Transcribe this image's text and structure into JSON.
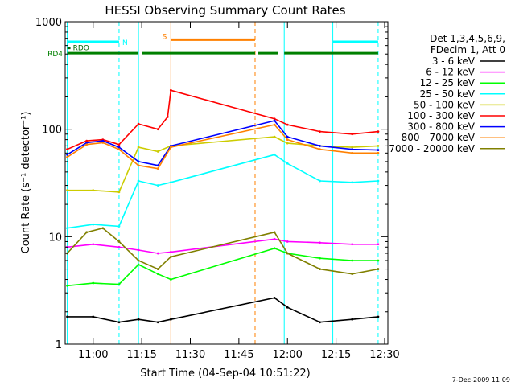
{
  "chart_data": {
    "type": "line",
    "title": "HESSI Observing Summary Count Rates",
    "xlabel": "Start Time (04-Sep-04 10:51:22)",
    "ylabel": "Count Rate (s⁻¹ detector⁻¹)",
    "y_scale": "log",
    "ylim": [
      1,
      1000
    ],
    "xlim": [
      "10:51:22",
      "12:31:00"
    ],
    "x_ticks": [
      "11:00",
      "11:15",
      "11:30",
      "11:45",
      "12:00",
      "12:15",
      "12:30"
    ],
    "y_ticks": [
      "1",
      "10",
      "100",
      "1000"
    ],
    "date_stamp": "7-Dec-2009 11:09",
    "legend_header": [
      "Det 1,3,4,5,6,9,",
      "FDecim 1, Att 0"
    ],
    "legend_position": "right",
    "series": [
      {
        "name": "3 - 6 keV",
        "color": "#000000",
        "x": [
          "10:52",
          "11:00",
          "11:08",
          "11:14",
          "11:20",
          "11:24",
          "11:56",
          "12:00",
          "12:10",
          "12:20",
          "12:28"
        ],
        "y": [
          1.8,
          1.8,
          1.6,
          1.7,
          1.6,
          1.7,
          2.7,
          2.2,
          1.6,
          1.7,
          1.8
        ]
      },
      {
        "name": "6 - 12 keV",
        "color": "#ff00ff",
        "x": [
          "10:52",
          "11:00",
          "11:08",
          "11:14",
          "11:20",
          "11:24",
          "11:56",
          "12:00",
          "12:10",
          "12:20",
          "12:28"
        ],
        "y": [
          8,
          8.5,
          8,
          7.5,
          7,
          7.2,
          9.5,
          9,
          8.8,
          8.5,
          8.5
        ]
      },
      {
        "name": "12 - 25 keV",
        "color": "#00ff00",
        "x": [
          "10:52",
          "11:00",
          "11:08",
          "11:14",
          "11:20",
          "11:24",
          "11:56",
          "12:00",
          "12:10",
          "12:20",
          "12:28"
        ],
        "y": [
          3.5,
          3.7,
          3.6,
          5.5,
          4.5,
          4,
          7.8,
          7,
          6.3,
          6,
          6
        ]
      },
      {
        "name": "25 - 50 keV",
        "color": "#00ffff",
        "x": [
          "10:52",
          "11:00",
          "11:08",
          "11:14",
          "11:20",
          "11:24",
          "11:56",
          "12:00",
          "12:10",
          "12:20",
          "12:28"
        ],
        "y": [
          12,
          13,
          12.5,
          33,
          30,
          32,
          58,
          48,
          33,
          32,
          33
        ]
      },
      {
        "name": "50 - 100 keV",
        "color": "#cccc00",
        "x": [
          "10:52",
          "11:00",
          "11:08",
          "11:14",
          "11:20",
          "11:24",
          "11:56",
          "12:00",
          "12:10",
          "12:20",
          "12:28"
        ],
        "y": [
          27,
          27,
          26,
          68,
          62,
          70,
          85,
          74,
          70,
          68,
          70
        ]
      },
      {
        "name": "100 - 300 keV",
        "color": "#ff0000",
        "x": [
          "10:52",
          "10:58",
          "11:03",
          "11:08",
          "11:14",
          "11:20",
          "11:23",
          "11:24",
          "11:56",
          "12:00",
          "12:10",
          "12:20",
          "12:28"
        ],
        "y": [
          65,
          78,
          80,
          72,
          112,
          100,
          130,
          230,
          125,
          110,
          95,
          90,
          95
        ]
      },
      {
        "name": "300 - 800 keV",
        "color": "#0000ff",
        "x": [
          "10:52",
          "10:58",
          "11:03",
          "11:08",
          "11:14",
          "11:20",
          "11:24",
          "11:56",
          "12:00",
          "12:10",
          "12:20",
          "12:28"
        ],
        "y": [
          58,
          75,
          78,
          68,
          50,
          46,
          70,
          120,
          85,
          70,
          65,
          64
        ]
      },
      {
        "name": "800 - 7000 keV",
        "color": "#ff8000",
        "x": [
          "10:52",
          "10:58",
          "11:03",
          "11:08",
          "11:14",
          "11:20",
          "11:24",
          "11:56",
          "12:00",
          "12:10",
          "12:20",
          "12:28"
        ],
        "y": [
          55,
          72,
          75,
          65,
          46,
          43,
          68,
          110,
          80,
          65,
          60,
          60
        ]
      },
      {
        "name": "7000 - 20000 keV",
        "color": "#808000",
        "x": [
          "10:52",
          "10:58",
          "11:03",
          "11:08",
          "11:14",
          "11:20",
          "11:24",
          "11:56",
          "12:00",
          "12:10",
          "12:20",
          "12:28"
        ],
        "y": [
          7,
          11,
          12,
          9,
          6,
          5,
          6.5,
          11,
          7,
          5,
          4.5,
          5
        ]
      }
    ],
    "flags": [
      {
        "label": "N",
        "color": "#00ffff",
        "segments": [
          [
            "10:52",
            "11:08"
          ],
          [
            "12:14",
            "12:28"
          ]
        ],
        "y_level": 650
      },
      {
        "label": "S",
        "color": "#ff8000",
        "segments": [
          [
            "11:24",
            "11:50"
          ]
        ],
        "y_level": 680
      },
      {
        "label": "RDO",
        "color": "#006400",
        "segments": [
          [
            "10:52",
            "10:53"
          ]
        ],
        "y_level": 570
      },
      {
        "label": "RD4",
        "color": "#008000",
        "segments": [
          [
            "10:52",
            "11:14"
          ],
          [
            "11:15",
            "11:50"
          ],
          [
            "11:51",
            "11:57"
          ],
          [
            "11:59",
            "12:28"
          ]
        ],
        "y_level": 510
      }
    ],
    "vlines": [
      {
        "t": "10:52",
        "color": "#00ffff",
        "style": "solid"
      },
      {
        "t": "11:08",
        "color": "#00ffff",
        "style": "dashed"
      },
      {
        "t": "11:14",
        "color": "#00ffff",
        "style": "solid"
      },
      {
        "t": "11:24",
        "color": "#ff8000",
        "style": "solid"
      },
      {
        "t": "11:50",
        "color": "#ff8000",
        "style": "dashed"
      },
      {
        "t": "11:59",
        "color": "#00ffff",
        "style": "solid"
      },
      {
        "t": "12:14",
        "color": "#00ffff",
        "style": "solid"
      },
      {
        "t": "12:28",
        "color": "#00ffff",
        "style": "dashed"
      }
    ]
  }
}
